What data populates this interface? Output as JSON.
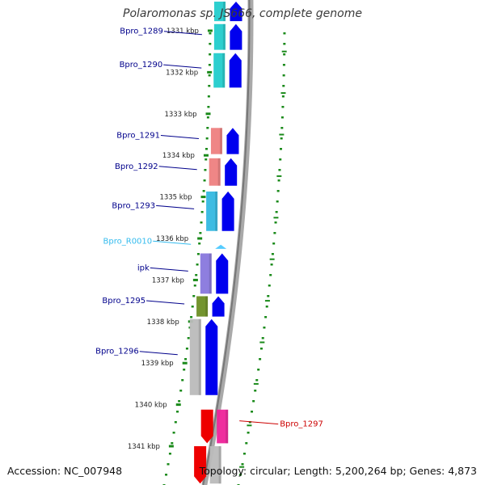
{
  "title": "Polaromonas sp. JS666, complete genome",
  "footer": {
    "accession": "Accession: NC_007948",
    "topology": "Topology: circular; Length: 5,200,264 bp; Genes: 4,873"
  },
  "colors": {
    "label_blue": "#00008b",
    "label_cyan": "#33bbee",
    "label_red": "#cc0000",
    "ruler_green": "#1a8a1a",
    "cds_forward": "#0000ee",
    "cds_reverse": "#ee0000"
  },
  "scale": {
    "unit": "kbp",
    "ticks": [
      {
        "label": "1331 kbp",
        "kbp": 1331
      },
      {
        "label": "1332 kbp",
        "kbp": 1332
      },
      {
        "label": "1333 kbp",
        "kbp": 1333
      },
      {
        "label": "1334 kbp",
        "kbp": 1334
      },
      {
        "label": "1335 kbp",
        "kbp": 1335
      },
      {
        "label": "1336 kbp",
        "kbp": 1336
      },
      {
        "label": "1337 kbp",
        "kbp": 1337
      },
      {
        "label": "1338 kbp",
        "kbp": 1338
      },
      {
        "label": "1339 kbp",
        "kbp": 1339
      },
      {
        "label": "1340 kbp",
        "kbp": 1340
      },
      {
        "label": "1341 kbp",
        "kbp": 1341
      }
    ]
  },
  "features": [
    {
      "name": "Bpro_1289",
      "strand": "+",
      "start_kbp": 1330.84,
      "end_kbp": 1331.46,
      "cog_color": "#22cccc",
      "label_color": "#00008b"
    },
    {
      "name": "Bpro_1290",
      "strand": "+",
      "start_kbp": 1331.54,
      "end_kbp": 1332.37,
      "cog_color": "#22cccc",
      "label_color": "#00008b"
    },
    {
      "name": "Bpro_1291",
      "strand": "+",
      "start_kbp": 1333.34,
      "end_kbp": 1333.97,
      "cog_color": "#ee8080",
      "label_color": "#00008b"
    },
    {
      "name": "Bpro_1292",
      "strand": "+",
      "start_kbp": 1334.07,
      "end_kbp": 1334.73,
      "cog_color": "#ee8080",
      "label_color": "#00008b"
    },
    {
      "name": "Bpro_1293",
      "strand": "+",
      "start_kbp": 1334.87,
      "end_kbp": 1335.82,
      "cog_color": "#33b8e0",
      "label_color": "#00008b"
    },
    {
      "name": "Bpro_R0010",
      "strand": "+",
      "start_kbp": 1336.15,
      "end_kbp": 1336.25,
      "cog_color": "#55ccff",
      "label_color": "#33bbee"
    },
    {
      "name": "ipk",
      "strand": "+",
      "start_kbp": 1336.36,
      "end_kbp": 1337.33,
      "cog_color": "#8877dd",
      "label_color": "#00008b"
    },
    {
      "name": "Bpro_1295",
      "strand": "+",
      "start_kbp": 1337.39,
      "end_kbp": 1337.88,
      "cog_color": "#6b8e23",
      "label_color": "#00008b"
    },
    {
      "name": "Bpro_1296",
      "strand": "+",
      "start_kbp": 1337.94,
      "end_kbp": 1339.77,
      "cog_color": "#bbbbbb",
      "label_color": "#00008b"
    },
    {
      "name": "Bpro_1297",
      "strand": "-",
      "start_kbp": 1340.12,
      "end_kbp": 1340.93,
      "cog_color": "#ee2299",
      "label_color": "#cc0000"
    }
  ],
  "partial_features": [
    {
      "strand": "+",
      "start_kbp": 1330.3,
      "end_kbp": 1330.77,
      "cog_color": "#22cccc"
    },
    {
      "strand": "-",
      "start_kbp": 1341.0,
      "end_kbp": 1341.9,
      "cog_color": "#bbbbbb"
    }
  ]
}
